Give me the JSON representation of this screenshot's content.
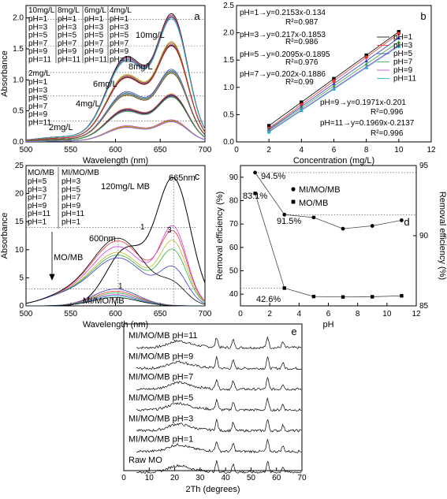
{
  "chart_data": [
    {
      "panel": "a",
      "type": "line",
      "xlabel": "Wavelength (nm)",
      "ylabel": "Absorbance",
      "xlim": [
        500,
        700
      ],
      "ylim": [
        0.0,
        2.2
      ],
      "xticks": [
        "500",
        "550",
        "600",
        "650",
        "700"
      ],
      "yticks": [
        "0.0",
        "0.5",
        "1.0",
        "1.5",
        "2.0"
      ],
      "legend_groups": [
        {
          "title": "10mg/L",
          "items": [
            "pH=1",
            "pH=3",
            "pH=5",
            "pH=7",
            "pH=9",
            "pH=11"
          ]
        },
        {
          "title": "8mg/L",
          "items": [
            "pH=1",
            "pH=3",
            "pH=5",
            "pH=7",
            "pH=9",
            "pH=11"
          ]
        },
        {
          "title": "6mg/L",
          "items": [
            "pH=1",
            "pH=3",
            "pH=5",
            "pH=7",
            "pH=9",
            "pH=11"
          ]
        },
        {
          "title": "4mg/L",
          "items": [
            "pH=1",
            "pH=3",
            "pH=5",
            "pH=7",
            "pH=9",
            "pH=11"
          ]
        },
        {
          "title": "2mg/L",
          "items": [
            "pH=1",
            "pH=3",
            "pH=5",
            "pH=7",
            "pH=9",
            "pH=11"
          ]
        }
      ],
      "annotations": [
        "10mg/L",
        "8mg/L",
        "6mg/L",
        "4mg/L",
        "2mg/L"
      ],
      "peak_wavelengths": [
        612,
        664
      ],
      "series": [
        {
          "concentration": "10mg/L",
          "values_at_612": [
            1.43,
            1.41,
            1.4,
            1.38,
            1.37,
            1.36
          ],
          "values_at_664": [
            1.98,
            1.96,
            1.94,
            1.93,
            1.92,
            1.9
          ]
        },
        {
          "concentration": "8mg/L",
          "values_at_612": [
            1.13,
            1.11,
            1.1,
            1.09,
            1.08,
            1.07
          ],
          "values_at_664": [
            1.55,
            1.53,
            1.51,
            1.5,
            1.49,
            1.48
          ]
        },
        {
          "concentration": "6mg/L",
          "values_at_612": [
            0.84,
            0.82,
            0.81,
            0.8,
            0.79,
            0.78
          ],
          "values_at_664": [
            1.12,
            1.1,
            1.09,
            1.08,
            1.07,
            1.06
          ]
        },
        {
          "concentration": "4mg/L",
          "values_at_612": [
            0.56,
            0.55,
            0.54,
            0.53,
            0.52,
            0.51
          ],
          "values_at_664": [
            0.74,
            0.73,
            0.72,
            0.71,
            0.7,
            0.69
          ]
        },
        {
          "concentration": "2mg/L",
          "values_at_612": [
            0.27,
            0.26,
            0.26,
            0.25,
            0.25,
            0.24
          ],
          "values_at_664": [
            0.34,
            0.33,
            0.33,
            0.32,
            0.32,
            0.31
          ]
        }
      ]
    },
    {
      "panel": "b",
      "type": "scatter",
      "xlabel": "Concentration (mg/L)",
      "ylabel": "",
      "xlim": [
        0,
        12
      ],
      "ylim": [
        0.0,
        2.5
      ],
      "xticks": [
        "0",
        "2",
        "4",
        "6",
        "8",
        "10",
        "12"
      ],
      "yticks": [
        "0.0",
        "0.5",
        "1.0",
        "1.5",
        "2.0",
        "2.5"
      ],
      "x": [
        2,
        4,
        6,
        8,
        10
      ],
      "legend": [
        "pH=1",
        "pH=3",
        "pH=5",
        "pH=7",
        "pH=9",
        "pH=11"
      ],
      "fits": [
        {
          "name": "pH=1",
          "equation": "y=0.2153x-0.134",
          "r2": "R²=0.987",
          "slope": 0.2153,
          "intercept": -0.134
        },
        {
          "name": "pH=3",
          "equation": "y=0.217x-0.1853",
          "r2": "R²=0.986",
          "slope": 0.217,
          "intercept": -0.1853
        },
        {
          "name": "pH=5",
          "equation": "y=0.2095x-0.1895",
          "r2": "R²=0.976",
          "slope": 0.2095,
          "intercept": -0.1895
        },
        {
          "name": "pH=7",
          "equation": "y=0.202x-0.1886",
          "r2": "R²=0.99",
          "slope": 0.202,
          "intercept": -0.1886
        },
        {
          "name": "pH=9",
          "equation": "y=0.1971x-0.201",
          "r2": "R²=0.996",
          "slope": 0.1971,
          "intercept": -0.201
        },
        {
          "name": "pH=11",
          "equation": "y=0.1969x-0.2137",
          "r2": "R²=0.996",
          "slope": 0.1969,
          "intercept": -0.2137
        }
      ]
    },
    {
      "panel": "c",
      "type": "line",
      "xlabel": "Wavelength (nm)",
      "ylabel": "Absorbance",
      "xlim": [
        500,
        700
      ],
      "ylim": [
        0,
        25
      ],
      "xticks": [
        "500",
        "550",
        "600",
        "650",
        "700"
      ],
      "yticks": [
        "0",
        "5",
        "10",
        "15",
        "20",
        "25"
      ],
      "legend_groups": [
        {
          "title": "MO/MB",
          "items": [
            "pH=5",
            "pH=3",
            "pH=7",
            "pH=9",
            "pH=11",
            "pH=1"
          ]
        },
        {
          "title": "MI/MO/MB",
          "items": [
            "pH=3",
            "pH=5",
            "pH=7",
            "pH=9",
            "pH=11",
            "pH=1"
          ]
        }
      ],
      "annotations": [
        "120mg/L MB",
        "665nm",
        "600nm",
        "MO/MB",
        "MI/MO/MB",
        "1",
        "3",
        "1"
      ],
      "series": [
        {
          "name": "120mg/L MB",
          "peak_nm": 665,
          "peak": 22.3
        },
        {
          "name": "MO/MB pH=1",
          "peak_nm": 605,
          "peak": 12.0
        },
        {
          "name": "MO/MB pH=3",
          "peak_nm": 665,
          "peak": 13.0
        },
        {
          "name": "MI/MO/MB pH=1",
          "peak_nm": 600,
          "peak": 3.0
        }
      ]
    },
    {
      "panel": "d",
      "type": "line",
      "xlabel": "pH",
      "ylabel": "Removal efficiency (%)",
      "ylabel_right": "Removal efficiency (%)",
      "xlim": [
        0,
        12
      ],
      "ylim": [
        35,
        95
      ],
      "ylim_right": [
        85,
        95
      ],
      "xticks": [
        "0",
        "2",
        "4",
        "6",
        "8",
        "10",
        "12"
      ],
      "yticks": [
        "40",
        "50",
        "60",
        "70",
        "80",
        "90"
      ],
      "yticks_right": [
        "85",
        "90",
        "95"
      ],
      "x": [
        1,
        3,
        5,
        7,
        9,
        11
      ],
      "legend": [
        "MI/MO/MB",
        "MO/MB"
      ],
      "series": [
        {
          "name": "MI/MO/MB",
          "axis": "right",
          "values": [
            94.5,
            91.5,
            91.3,
            90.5,
            90.7,
            91.1
          ]
        },
        {
          "name": "MO/MB",
          "axis": "left",
          "values": [
            83.1,
            42.6,
            39.0,
            38.8,
            38.9,
            39.3
          ]
        }
      ],
      "annotations": [
        "94.5%",
        "83.1%",
        "91.5%",
        "42.6%"
      ]
    },
    {
      "panel": "e",
      "type": "line",
      "xlabel": "2Th (degrees)",
      "xlim": [
        0,
        70
      ],
      "xticks": [
        "0",
        "10",
        "20",
        "30",
        "40",
        "50",
        "60",
        "70"
      ],
      "series": [
        {
          "name": "MI/MO/MB pH=11"
        },
        {
          "name": "MI/MO/MB pH=9"
        },
        {
          "name": "MI/MO/MB pH=7"
        },
        {
          "name": "MI/MO/MB pH=5"
        },
        {
          "name": "MI/MO/MB pH=3"
        },
        {
          "name": "MI/MO/MB pH=1"
        },
        {
          "name": "Raw MO"
        }
      ],
      "peaks_deg": [
        21,
        36.5,
        43,
        56.5,
        62.5
      ]
    }
  ]
}
